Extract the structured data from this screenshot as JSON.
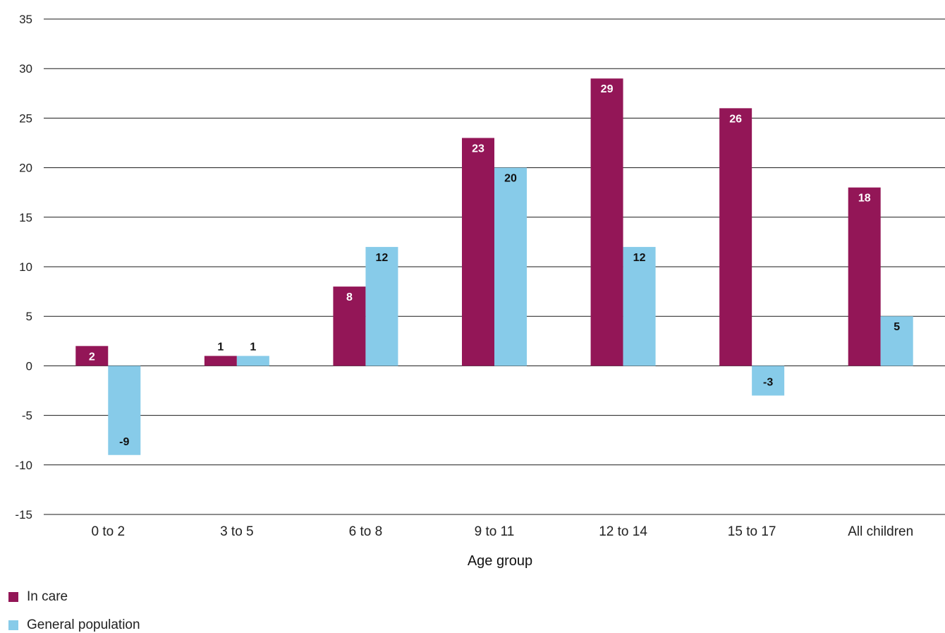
{
  "chart_data": {
    "type": "bar",
    "xlabel": "Age group",
    "ylabel": "",
    "ylim": [
      -15,
      35
    ],
    "yticks": [
      -15,
      -10,
      -5,
      0,
      5,
      10,
      15,
      20,
      25,
      30,
      35
    ],
    "grid": true,
    "legend_position": "bottom-left",
    "categories": [
      "0 to 2",
      "3 to 5",
      "6 to 8",
      "9 to 11",
      "12 to 14",
      "15 to 17",
      "All children"
    ],
    "series": [
      {
        "name": "In care",
        "color": "#931657",
        "values": [
          2,
          1,
          8,
          23,
          29,
          26,
          18
        ]
      },
      {
        "name": "General population",
        "color": "#87CBE9",
        "values": [
          -9,
          1,
          12,
          20,
          12,
          -3,
          5
        ]
      }
    ]
  }
}
